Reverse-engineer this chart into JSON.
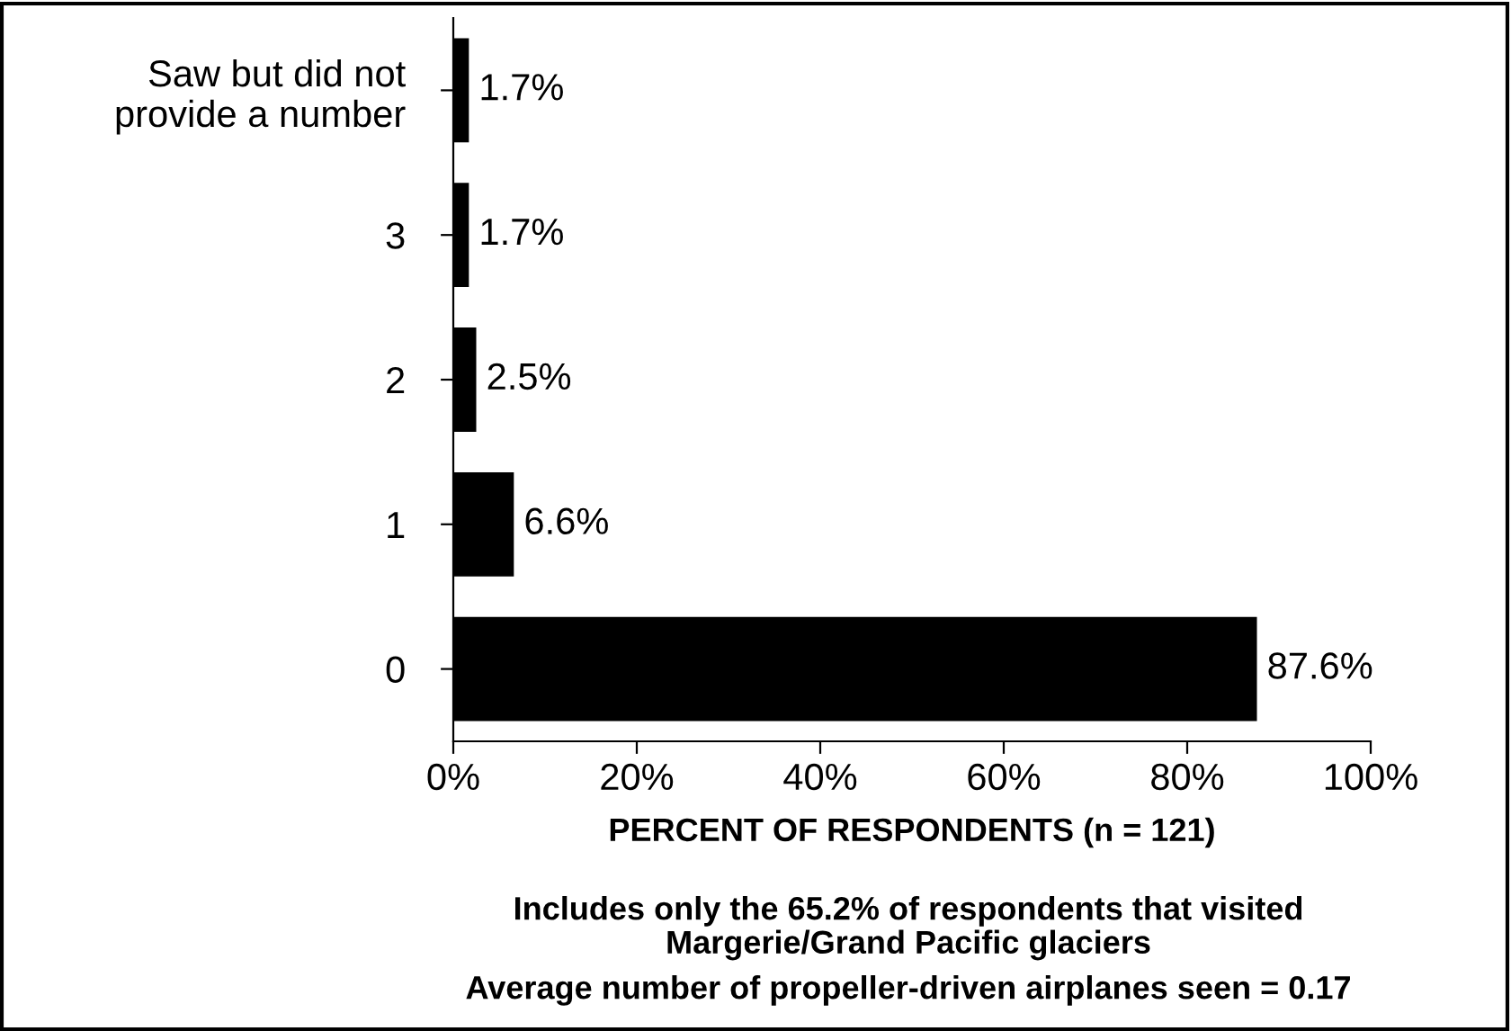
{
  "chart_data": {
    "type": "bar",
    "orientation": "horizontal",
    "categories": [
      "Saw but did not\nprovide a number",
      "3",
      "2",
      "1",
      "0"
    ],
    "values": [
      1.7,
      1.7,
      2.5,
      6.6,
      87.6
    ],
    "value_labels": [
      "1.7%",
      "1.7%",
      "2.5%",
      "6.6%",
      "87.6%"
    ],
    "color": "#000000",
    "xlim": [
      0,
      100
    ],
    "xticks": [
      {
        "value": 0,
        "label": "0%"
      },
      {
        "value": 20,
        "label": "20%"
      },
      {
        "value": 40,
        "label": "40%"
      },
      {
        "value": 60,
        "label": "60%"
      },
      {
        "value": 80,
        "label": "80%"
      },
      {
        "value": 100,
        "label": "100%"
      }
    ],
    "xlabel": "PERCENT OF RESPONDENTS (n = 121)",
    "annotations": [
      "Includes only the 65.2% of respondents that visited\nMargerie/Grand Pacific glaciers",
      "Average number of propeller-driven airplanes seen = 0.17"
    ],
    "grid": false,
    "legend": false
  }
}
